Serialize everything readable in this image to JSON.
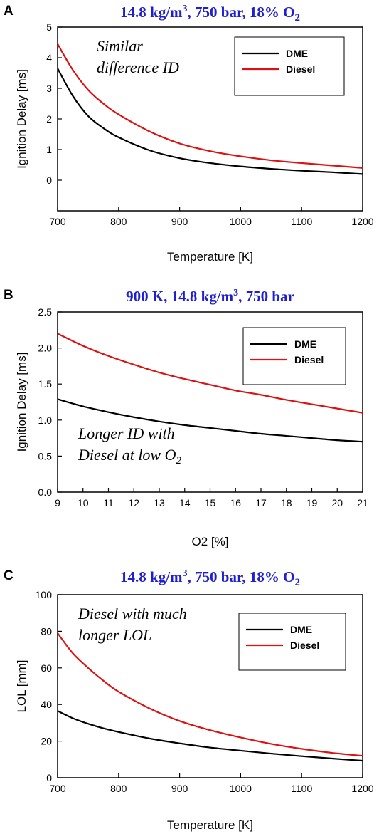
{
  "chart_data": [
    {
      "panel": "A",
      "type": "line",
      "title_main": "14.8 kg/m",
      "title_sup": "3",
      "title_rest": ", 750 bar, 18% O",
      "title_sub": "2",
      "xlabel": "Temperature [K]",
      "ylabel": "Ignition Delay [ms]",
      "xlim": [
        700,
        1200
      ],
      "ylim": [
        -1,
        5
      ],
      "xticks": [
        700,
        800,
        900,
        1000,
        1100,
        1200
      ],
      "yticks": [
        0,
        1,
        2,
        3,
        4,
        5
      ],
      "annotation": [
        "Similar",
        "difference ID"
      ],
      "legend": [
        "DME",
        "Diesel"
      ],
      "legend_position": "top-right",
      "colors": {
        "DME": "#000000",
        "Diesel": "#dd1111"
      },
      "series": [
        {
          "name": "DME",
          "x": [
            700,
            725,
            750,
            775,
            800,
            850,
            900,
            950,
            1000,
            1050,
            1100,
            1150,
            1200
          ],
          "values": [
            3.65,
            2.75,
            2.1,
            1.7,
            1.4,
            0.98,
            0.72,
            0.56,
            0.45,
            0.37,
            0.31,
            0.26,
            0.2
          ]
        },
        {
          "name": "Diesel",
          "x": [
            700,
            725,
            750,
            775,
            800,
            850,
            900,
            950,
            1000,
            1050,
            1100,
            1150,
            1200
          ],
          "values": [
            4.45,
            3.6,
            2.95,
            2.5,
            2.15,
            1.6,
            1.2,
            0.95,
            0.78,
            0.65,
            0.56,
            0.48,
            0.4
          ]
        }
      ]
    },
    {
      "panel": "B",
      "type": "line",
      "title_main": "900 K, 14.8 kg/m",
      "title_sup": "3",
      "title_rest": ", 750 bar",
      "title_sub": "",
      "xlabel": "O2 [%]",
      "ylabel": "Ignition Delay [ms]",
      "xlim": [
        9,
        21
      ],
      "ylim": [
        0,
        2.5
      ],
      "xticks": [
        9,
        10,
        11,
        12,
        13,
        14,
        15,
        16,
        17,
        18,
        19,
        20,
        21
      ],
      "yticks": [
        "0.0",
        "0.5",
        "1.0",
        "1.5",
        "2.0",
        "2.5"
      ],
      "annotation": [
        "Longer ID with",
        "Diesel at low O"
      ],
      "annotation_sub": "2",
      "legend": [
        "DME",
        "Diesel"
      ],
      "legend_position": "top-right",
      "colors": {
        "DME": "#000000",
        "Diesel": "#dd1111"
      },
      "series": [
        {
          "name": "DME",
          "x": [
            9,
            10,
            11,
            12,
            13,
            14,
            15,
            16,
            17,
            18,
            19,
            20,
            21
          ],
          "values": [
            1.29,
            1.19,
            1.11,
            1.04,
            0.98,
            0.93,
            0.89,
            0.85,
            0.81,
            0.78,
            0.75,
            0.72,
            0.7
          ]
        },
        {
          "name": "Diesel",
          "x": [
            9,
            10,
            11,
            12,
            13,
            14,
            15,
            16,
            17,
            18,
            19,
            20,
            21
          ],
          "values": [
            2.2,
            2.03,
            1.89,
            1.77,
            1.66,
            1.57,
            1.49,
            1.41,
            1.35,
            1.28,
            1.22,
            1.16,
            1.1
          ]
        }
      ]
    },
    {
      "panel": "C",
      "type": "line",
      "title_main": "14.8 kg/m",
      "title_sup": "3",
      "title_rest": ", 750 bar, 18% O",
      "title_sub": "2",
      "xlabel": "Temperature [K]",
      "ylabel": "LOL [mm]",
      "xlim": [
        700,
        1200
      ],
      "ylim": [
        0,
        100
      ],
      "xticks": [
        700,
        800,
        900,
        1000,
        1100,
        1200
      ],
      "yticks": [
        0,
        20,
        40,
        60,
        80,
        100
      ],
      "annotation": [
        "Diesel with much",
        "longer LOL"
      ],
      "legend": [
        "DME",
        "Diesel"
      ],
      "legend_position": "top-right",
      "colors": {
        "DME": "#000000",
        "Diesel": "#dd1111"
      },
      "series": [
        {
          "name": "DME",
          "x": [
            700,
            725,
            750,
            775,
            800,
            850,
            900,
            950,
            1000,
            1050,
            1100,
            1150,
            1200
          ],
          "values": [
            36.5,
            32.5,
            29.5,
            27,
            25,
            21.5,
            18.8,
            16.5,
            14.8,
            13.2,
            11.8,
            10.5,
            9.3
          ]
        },
        {
          "name": "Diesel",
          "x": [
            700,
            725,
            750,
            775,
            800,
            850,
            900,
            950,
            1000,
            1050,
            1100,
            1150,
            1200
          ],
          "values": [
            79,
            68,
            60,
            53,
            47,
            38,
            31,
            26,
            22,
            18.5,
            15.8,
            13.6,
            12
          ]
        }
      ]
    }
  ]
}
